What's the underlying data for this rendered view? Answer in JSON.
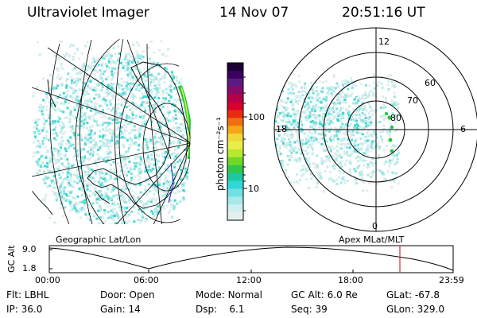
{
  "header": {
    "title": "Ultraviolet Imager",
    "date": "14 Nov 07",
    "time": "20:51:16 UT"
  },
  "colorbar": {
    "unit_label": "photon cm⁻²s⁻¹",
    "ticks": [
      "100",
      "10"
    ],
    "colors": [
      "#1a0033",
      "#3b005e",
      "#5c1a80",
      "#8a0a6a",
      "#b4004a",
      "#d6002a",
      "#ea2a10",
      "#f07010",
      "#f4a818",
      "#f0d83a",
      "#e8ee4a",
      "#b8e830",
      "#70d828",
      "#30c848",
      "#20c8a0",
      "#30d8d8",
      "#70e0e0",
      "#a8e8e8",
      "#d0eeee",
      "#e4f0f0"
    ]
  },
  "polar": {
    "lat_labels": [
      "60",
      "70",
      "80"
    ],
    "mlt_labels": {
      "top": "12",
      "left": "18",
      "right": "6",
      "bottom": "0"
    }
  },
  "panel_labels": {
    "left": "Geographic Lat/Lon",
    "right": "Apex MLat/MLT"
  },
  "altitude_plot": {
    "ylabel": "GC Alt",
    "yticks": [
      "9.0",
      "1.8"
    ],
    "xticks": [
      "00:00",
      "06:00",
      "12:00",
      "18:00",
      "23:59"
    ],
    "marker_time": "20:51"
  },
  "info": {
    "flt": {
      "label": "Flt:",
      "value": "LBHL"
    },
    "ip": {
      "label": "IP:",
      "value": "36.0"
    },
    "door": {
      "label": "Door:",
      "value": "Open"
    },
    "gain": {
      "label": "Gain:",
      "value": "14"
    },
    "mode": {
      "label": "Mode:",
      "value": "Normal"
    },
    "dsp": {
      "label": "Dsp:",
      "value": "6.1"
    },
    "gcalt": {
      "label": "GC Alt:",
      "value": "6.0 Re"
    },
    "seq": {
      "label": "Seq:",
      "value": "39"
    },
    "glat": {
      "label": "GLat:",
      "value": "-67.8"
    },
    "glon": {
      "label": "GLon:",
      "value": "329.0"
    }
  }
}
